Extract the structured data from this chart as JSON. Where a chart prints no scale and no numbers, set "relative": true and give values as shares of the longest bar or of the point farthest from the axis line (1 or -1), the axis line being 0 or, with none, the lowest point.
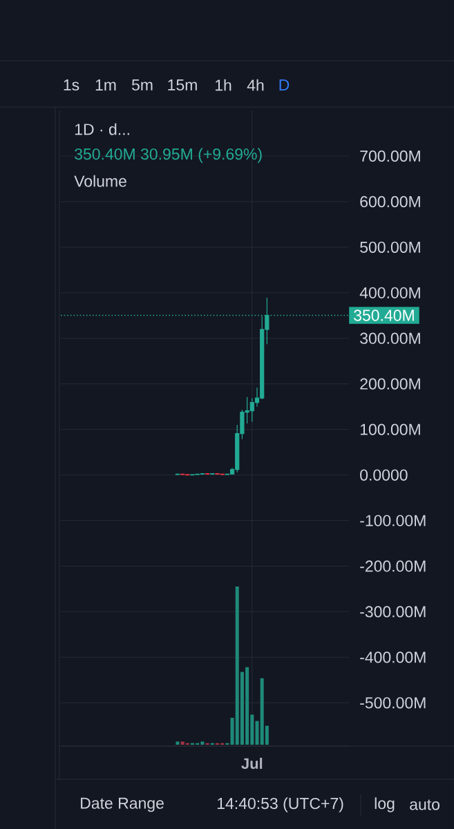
{
  "chart_data": [
    {
      "type": "candlestick",
      "title": "1D · d...",
      "subtitle": "350.40M 30.95M (+9.69%)",
      "categories": [
        null,
        null,
        null,
        null,
        null,
        null,
        null,
        null,
        null,
        null,
        null,
        null,
        null,
        null,
        null,
        null,
        null,
        null,
        null,
        null,
        null,
        null,
        null,
        null,
        null,
        null,
        null,
        null,
        null,
        null,
        null,
        null,
        null,
        null,
        null,
        null,
        null,
        null,
        "Jul",
        null,
        null,
        null,
        null,
        null,
        null,
        null,
        null,
        null,
        null,
        null,
        null,
        null,
        null,
        null,
        null,
        null,
        null,
        null
      ],
      "ohlc": [
        null,
        null,
        null,
        null,
        null,
        null,
        null,
        null,
        null,
        null,
        null,
        null,
        null,
        null,
        null,
        null,
        null,
        null,
        null,
        null,
        null,
        null,
        null,
        [
          1,
          2,
          1,
          2
        ],
        [
          2,
          3,
          1,
          1
        ],
        [
          1,
          1,
          0,
          0
        ],
        [
          0,
          1,
          0,
          1
        ],
        [
          1,
          2,
          1,
          2
        ],
        [
          2,
          3,
          1,
          3
        ],
        [
          3,
          3,
          1,
          2
        ],
        [
          2,
          3,
          2,
          3
        ],
        [
          3,
          3,
          1,
          2
        ],
        [
          2,
          2,
          1,
          1
        ],
        [
          1,
          2,
          1,
          2
        ],
        [
          2,
          16,
          1,
          12
        ],
        [
          12,
          110,
          6,
          91
        ],
        [
          91,
          143,
          79,
          138
        ],
        [
          138,
          171,
          113,
          141
        ],
        [
          141,
          169,
          117,
          159
        ],
        [
          159,
          192,
          150,
          169
        ],
        [
          169,
          349,
          166,
          319.45
        ],
        [
          319.45,
          389,
          287,
          350.4
        ],
        null,
        null,
        null,
        null,
        null,
        null,
        null,
        null,
        null,
        null,
        null,
        null,
        null,
        null,
        null,
        null
      ],
      "colors": [
        null,
        null,
        null,
        null,
        null,
        null,
        null,
        null,
        null,
        null,
        null,
        null,
        null,
        null,
        null,
        null,
        null,
        null,
        null,
        null,
        null,
        null,
        null,
        "#22ab94",
        "#f23645",
        "#f23645",
        "#22ab94",
        "#22ab94",
        "#22ab94",
        "#f23645",
        "#22ab94",
        "#f23645",
        "#f23645",
        "#22ab94",
        "#22ab94",
        "#22ab94",
        "#22ab94",
        "#22ab94",
        "#22ab94",
        "#22ab94",
        "#22ab94",
        "#22ab94",
        null,
        null,
        null,
        null,
        null,
        null,
        null,
        null,
        null,
        null,
        null,
        null,
        null,
        null,
        null,
        null
      ],
      "ylim": [
        -595,
        800
      ],
      "yticks": [
        {
          "value": 700,
          "label": "700.00M"
        },
        {
          "value": 600,
          "label": "600.00M"
        },
        {
          "value": 500,
          "label": "500.00M"
        },
        {
          "value": 400,
          "label": "400.00M"
        },
        {
          "value": 300,
          "label": "300.00M"
        },
        {
          "value": 200,
          "label": "200.00M"
        },
        {
          "value": 100,
          "label": "100.00M"
        },
        {
          "value": 0,
          "label": "0.0000"
        },
        {
          "value": -100,
          "label": "-100.00M"
        },
        {
          "value": -200,
          "label": "-200.00M"
        },
        {
          "value": -300,
          "label": "-300.00M"
        },
        {
          "value": -400,
          "label": "-400.00M"
        },
        {
          "value": -500,
          "label": "-500.00M"
        }
      ],
      "grid": true,
      "ref_lines": [
        {
          "axis": "y",
          "value": 350.4,
          "label": "350.40M",
          "color": "#22ab94",
          "line_style": "dotted"
        }
      ],
      "annotations": [
        "1s",
        "1m",
        "5m",
        "15m",
        "1h",
        "4h",
        "D",
        "Date Range",
        "14:40:53 (UTC+7)",
        "log",
        "auto"
      ]
    },
    {
      "type": "bar",
      "title": "Volume",
      "relative": true,
      "categories": [
        null,
        null,
        null,
        null,
        null,
        null,
        null,
        null,
        null,
        null,
        null,
        null,
        null,
        null,
        null,
        null,
        null,
        null,
        null,
        null,
        null,
        null,
        null,
        null,
        null,
        null,
        null,
        null,
        null,
        null,
        null,
        null,
        null,
        null,
        null,
        null,
        null,
        null,
        null,
        null,
        null,
        null,
        null,
        null,
        null,
        null,
        null,
        null,
        null,
        null,
        null,
        null,
        null,
        null,
        null,
        null,
        null,
        null
      ],
      "values": [
        null,
        null,
        null,
        null,
        null,
        null,
        null,
        null,
        null,
        null,
        null,
        null,
        null,
        null,
        null,
        null,
        null,
        null,
        null,
        null,
        null,
        null,
        null,
        0.02,
        0.02,
        0.01,
        0.01,
        0.01,
        0.02,
        0.01,
        0.01,
        0.01,
        0.01,
        0.01,
        0.17,
        1,
        0.46,
        0.49,
        0.19,
        0.15,
        0.42,
        0.12,
        null,
        null,
        null,
        null,
        null,
        null,
        null,
        null,
        null,
        null,
        null,
        null,
        null,
        null,
        null,
        null
      ],
      "colors": [
        null,
        null,
        null,
        null,
        null,
        null,
        null,
        null,
        null,
        null,
        null,
        null,
        null,
        null,
        null,
        null,
        null,
        null,
        null,
        null,
        null,
        null,
        null,
        "#1f8a79",
        "#a13445",
        "#a13445",
        "#1f8a79",
        "#1f8a79",
        "#1f8a79",
        "#a13445",
        "#1f8a79",
        "#a13445",
        "#a13445",
        "#1f8a79",
        "#1f8a79",
        "#1f8a79",
        "#1f8a79",
        "#1f8a79",
        "#1f8a79",
        "#1f8a79",
        "#1f8a79",
        "#1f8a79",
        null,
        null,
        null,
        null,
        null,
        null,
        null,
        null,
        null,
        null,
        null,
        null,
        null,
        null,
        null,
        null
      ]
    }
  ]
}
